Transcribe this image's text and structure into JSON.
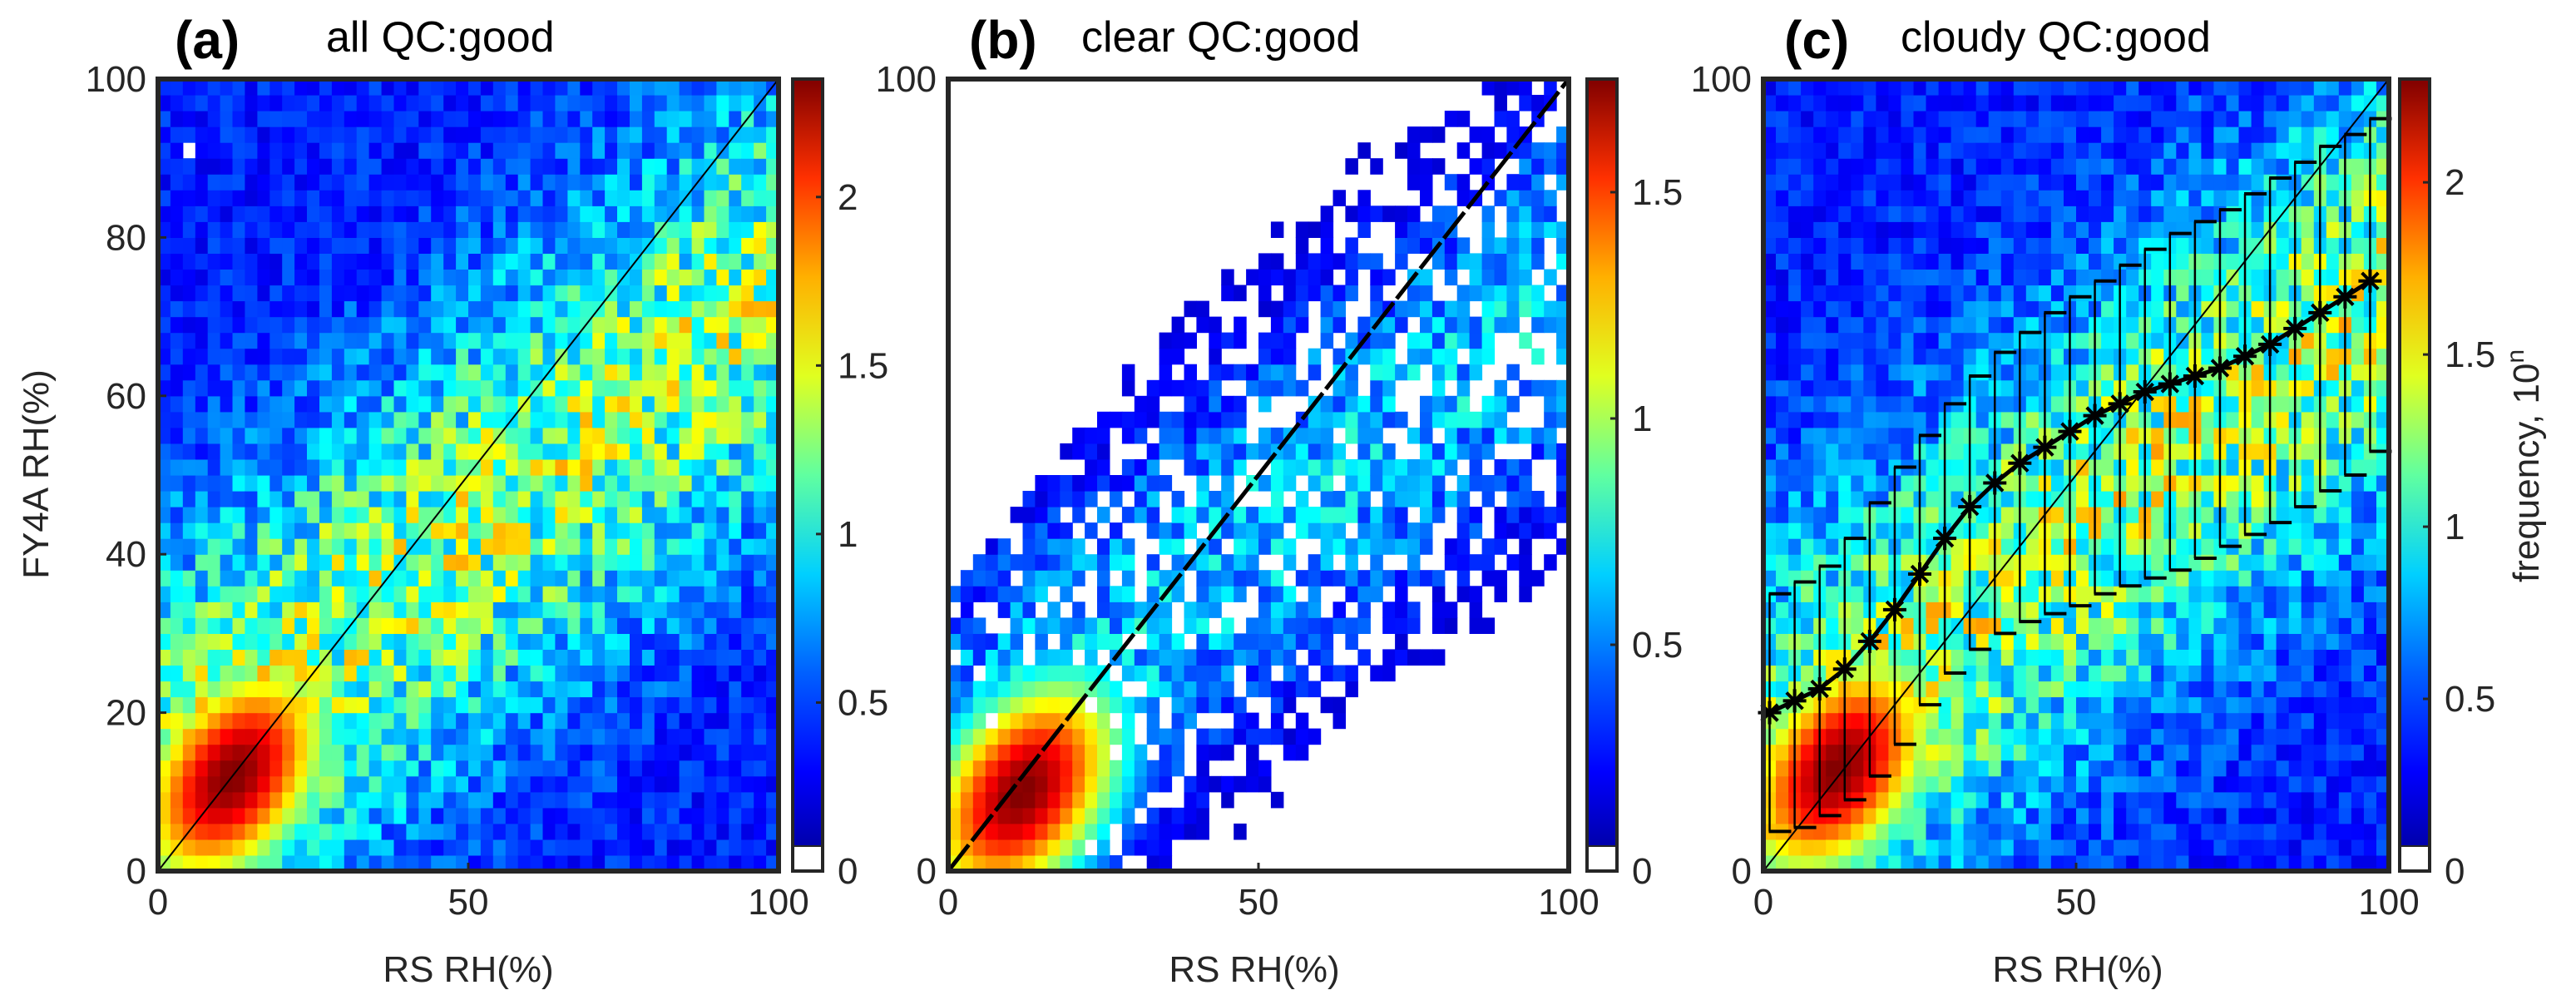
{
  "figure_caption": "",
  "colors": {
    "axes": "#262626",
    "colormap": [
      "#00008f",
      "#0000ff",
      "#0080ff",
      "#00ffff",
      "#80ff80",
      "#ffff00",
      "#ff8000",
      "#ff0000",
      "#800000"
    ]
  },
  "chart_data": [
    {
      "type": "heatmap",
      "panel_label": "(a)",
      "title": "all QC:good",
      "xlabel": "RS RH(%)",
      "ylabel": "FY4A RH(%)",
      "xlim": [
        0,
        100
      ],
      "ylim": [
        0,
        100
      ],
      "xticks": [
        0,
        50,
        100
      ],
      "xtick_labels": [
        "0",
        "50",
        "100"
      ],
      "yticks": [
        0,
        20,
        40,
        60,
        80,
        100
      ],
      "ytick_labels": [
        "0",
        "20",
        "40",
        "60",
        "80",
        "100"
      ],
      "reference_line": "1:1",
      "bin_size": 2,
      "density_model": {
        "core_x": 12,
        "core_y": 12,
        "peak": 2.35,
        "spread": "broad"
      },
      "colorbar": {
        "range": [
          0,
          2.35
        ],
        "ticks": [
          0,
          0.5,
          1,
          1.5,
          2
        ],
        "tick_labels": [
          "0",
          "0.5",
          "1",
          "1.5",
          "2"
        ],
        "label": ""
      }
    },
    {
      "type": "heatmap",
      "panel_label": "(b)",
      "title": "clear QC:good",
      "xlabel": "RS RH(%)",
      "ylabel": "",
      "xlim": [
        0,
        100
      ],
      "ylim": [
        0,
        100
      ],
      "xticks": [
        0,
        50,
        100
      ],
      "xtick_labels": [
        "0",
        "50",
        "100"
      ],
      "yticks": [
        0,
        100
      ],
      "ytick_labels": [
        "0",
        "100"
      ],
      "reference_line": "1:1",
      "bin_size": 2,
      "density_model": {
        "core_x": 12,
        "core_y": 10,
        "peak": 1.75,
        "spread": "sparse"
      },
      "colorbar": {
        "range": [
          0,
          1.75
        ],
        "ticks": [
          0,
          0.5,
          1,
          1.5
        ],
        "tick_labels": [
          "0",
          "0.5",
          "1",
          "1.5"
        ],
        "label": ""
      }
    },
    {
      "type": "heatmap",
      "panel_label": "(c)",
      "title": "cloudy QC:good",
      "xlabel": "RS RH(%)",
      "ylabel": "",
      "xlim": [
        0,
        100
      ],
      "ylim": [
        0,
        100
      ],
      "xticks": [
        0,
        50,
        100
      ],
      "xtick_labels": [
        "0",
        "50",
        "100"
      ],
      "yticks": [
        0,
        100
      ],
      "ytick_labels": [
        "0",
        "100"
      ],
      "reference_line": "1:1",
      "bin_size": 2,
      "density_model": {
        "core_x": 12,
        "core_y": 13,
        "peak": 2.3,
        "spread": "broad"
      },
      "colorbar": {
        "range": [
          0,
          2.3
        ],
        "ticks": [
          0,
          0.5,
          1,
          1.5,
          2
        ],
        "tick_labels": [
          "0",
          "0.5",
          "1",
          "1.5",
          "2"
        ],
        "label": "frequency, 10",
        "label_superscript": "n"
      },
      "mean_series": {
        "name": "binned mean ± std",
        "x": [
          1,
          5,
          9,
          13,
          17,
          21,
          25,
          29,
          33,
          37,
          41,
          45,
          49,
          53,
          57,
          61,
          65,
          69,
          73,
          77,
          81,
          85,
          89,
          93,
          97
        ],
        "mean": [
          20,
          21.5,
          23,
          25.5,
          29,
          33,
          37.5,
          42,
          46,
          49,
          51.5,
          53.5,
          55.5,
          57.5,
          59,
          60.5,
          61.5,
          62.5,
          63.5,
          65,
          66.5,
          68.5,
          70.5,
          72.5,
          74.5
        ],
        "lower": [
          5,
          5.5,
          7,
          9,
          12,
          16,
          21,
          25,
          28,
          30,
          31.5,
          32.5,
          33.5,
          35,
          36,
          37,
          38,
          39.5,
          41,
          42.5,
          44,
          46,
          48,
          50,
          53
        ],
        "upper": [
          35,
          36.5,
          38.5,
          42,
          46.5,
          51,
          55,
          59,
          62.5,
          65.5,
          68,
          70.5,
          72.5,
          74.5,
          76.5,
          78.5,
          80.5,
          82,
          83.5,
          85.5,
          87.5,
          89.5,
          91.5,
          93,
          95
        ]
      }
    }
  ]
}
